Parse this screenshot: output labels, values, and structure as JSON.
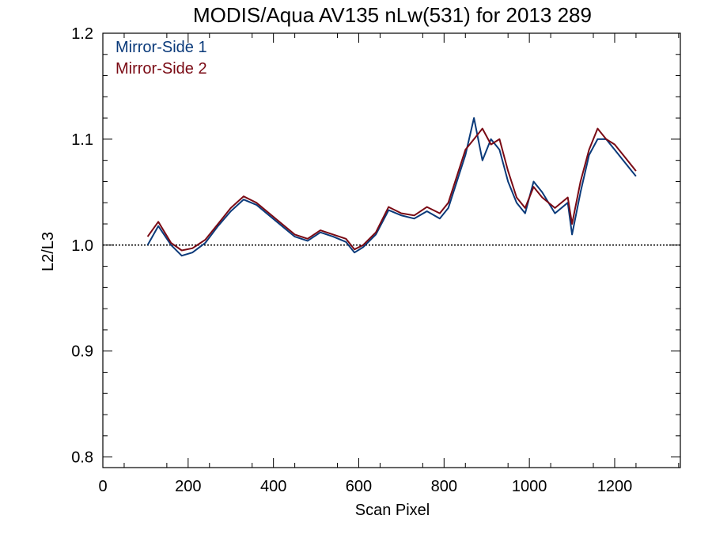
{
  "chart_data": {
    "type": "line",
    "title": "MODIS/Aqua AV135 nLw(531) for 2013 289",
    "xlabel": "Scan Pixel",
    "ylabel": "L2/L3",
    "xlim": [
      0,
      1354
    ],
    "ylim": [
      0.79,
      1.2
    ],
    "x_ticks": [
      0,
      200,
      400,
      600,
      800,
      1000,
      1200
    ],
    "x_tick_labels": [
      "0",
      "200",
      "400",
      "600",
      "800",
      "1000",
      "1200"
    ],
    "y_ticks": [
      0.8,
      0.9,
      1.0,
      1.1,
      1.2
    ],
    "y_tick_labels": [
      "0.8",
      "0.9",
      "1.0",
      "1.1",
      "1.2"
    ],
    "reference_line": {
      "y": 1.0,
      "style": "dotted",
      "color": "#000000"
    },
    "legend_placement": "top-left",
    "grid": false,
    "colors": {
      "Mirror-Side 1": "#0a3a7a",
      "Mirror-Side 2": "#7a0a14"
    },
    "series": [
      {
        "name": "Mirror-Side 1",
        "x": [
          105,
          130,
          160,
          185,
          210,
          240,
          270,
          300,
          330,
          360,
          390,
          420,
          450,
          480,
          510,
          540,
          570,
          590,
          610,
          640,
          670,
          700,
          730,
          760,
          790,
          810,
          830,
          850,
          870,
          890,
          910,
          930,
          950,
          970,
          990,
          1010,
          1030,
          1060,
          1090,
          1100,
          1120,
          1140,
          1160,
          1180,
          1200,
          1220,
          1240,
          1250
        ],
        "values": [
          1.0,
          1.018,
          1.0,
          0.99,
          0.993,
          1.002,
          1.018,
          1.032,
          1.043,
          1.038,
          1.028,
          1.018,
          1.008,
          1.004,
          1.012,
          1.008,
          1.003,
          0.993,
          0.998,
          1.01,
          1.033,
          1.028,
          1.025,
          1.032,
          1.025,
          1.035,
          1.06,
          1.085,
          1.12,
          1.08,
          1.1,
          1.09,
          1.06,
          1.04,
          1.03,
          1.06,
          1.05,
          1.03,
          1.04,
          1.01,
          1.05,
          1.085,
          1.1,
          1.1,
          1.09,
          1.08,
          1.07,
          1.065
        ]
      },
      {
        "name": "Mirror-Side 2",
        "x": [
          105,
          130,
          160,
          185,
          210,
          240,
          270,
          300,
          330,
          360,
          390,
          420,
          450,
          480,
          510,
          540,
          570,
          590,
          610,
          640,
          670,
          700,
          730,
          760,
          790,
          810,
          830,
          850,
          870,
          890,
          910,
          930,
          950,
          970,
          990,
          1010,
          1030,
          1060,
          1090,
          1100,
          1120,
          1140,
          1160,
          1180,
          1200,
          1220,
          1240,
          1250
        ],
        "values": [
          1.008,
          1.022,
          1.002,
          0.995,
          0.997,
          1.005,
          1.02,
          1.035,
          1.046,
          1.04,
          1.03,
          1.02,
          1.01,
          1.006,
          1.014,
          1.01,
          1.006,
          0.996,
          1.0,
          1.012,
          1.036,
          1.03,
          1.028,
          1.036,
          1.03,
          1.04,
          1.065,
          1.09,
          1.1,
          1.11,
          1.095,
          1.1,
          1.07,
          1.045,
          1.035,
          1.055,
          1.045,
          1.035,
          1.045,
          1.02,
          1.06,
          1.09,
          1.11,
          1.1,
          1.095,
          1.085,
          1.075,
          1.07
        ]
      }
    ]
  }
}
